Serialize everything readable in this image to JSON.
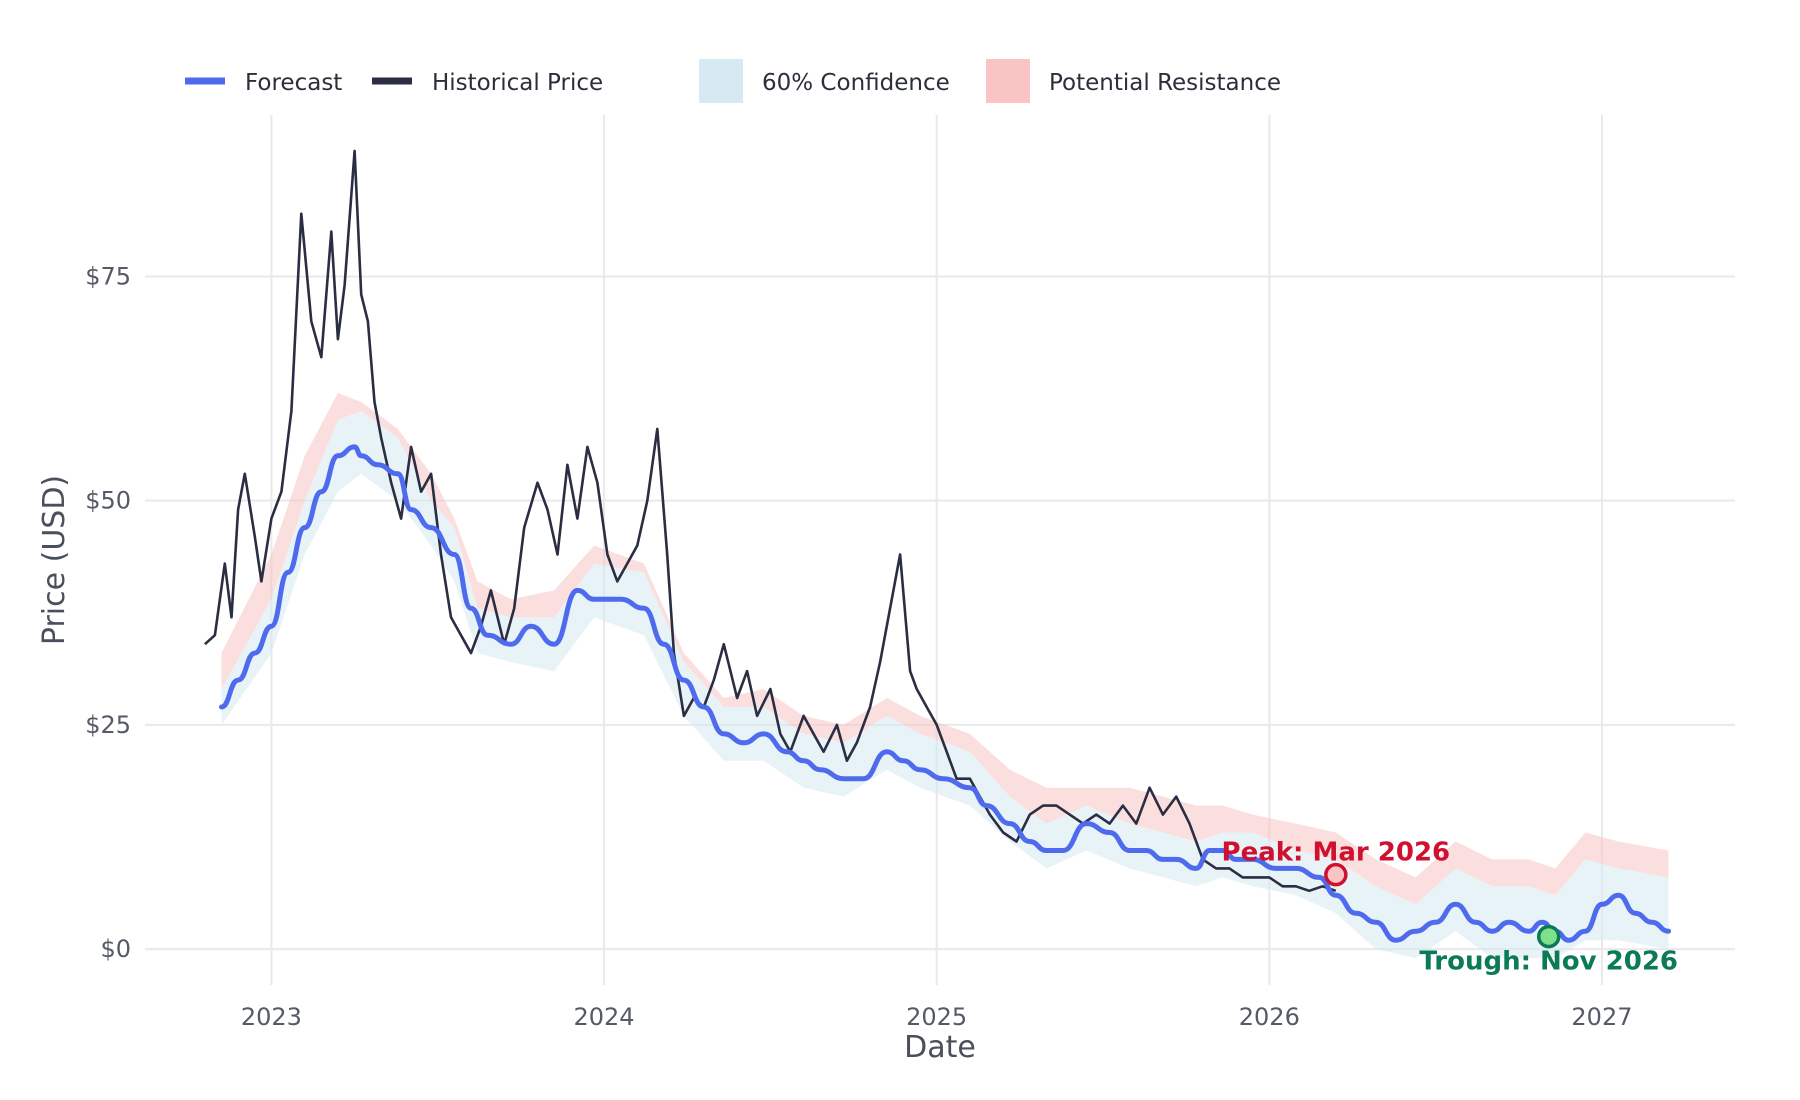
{
  "chart_data": {
    "type": "line",
    "title": "",
    "xlabel": "Date",
    "ylabel": "Price (USD)",
    "xlim": [
      2022.62,
      2027.4
    ],
    "ylim": [
      -4,
      93
    ],
    "x_ticks": [
      2023,
      2024,
      2025,
      2026,
      2027
    ],
    "x_tick_labels": [
      "2023",
      "2024",
      "2025",
      "2026",
      "2027"
    ],
    "y_ticks": [
      0,
      25,
      50,
      75
    ],
    "y_tick_labels": [
      "$0",
      "$25",
      "$50",
      "$75"
    ],
    "grid": true,
    "legend_position": "top-left",
    "legend": [
      {
        "label": "Forecast",
        "kind": "line",
        "color": "#4f6bed"
      },
      {
        "label": "Historical Price",
        "kind": "line",
        "color": "#2b2d42"
      },
      {
        "label": "60% Confidence",
        "kind": "patch",
        "color": "#d6eaf2"
      },
      {
        "label": "Potential Resistance",
        "kind": "patch",
        "color": "#f8c4c4"
      }
    ],
    "series": [
      {
        "name": "Historical Price",
        "color": "#2b2d42",
        "x": [
          2022.8,
          2022.83,
          2022.86,
          2022.88,
          2022.9,
          2022.92,
          2022.95,
          2022.97,
          2023.0,
          2023.03,
          2023.06,
          2023.09,
          2023.12,
          2023.15,
          2023.18,
          2023.2,
          2023.22,
          2023.25,
          2023.27,
          2023.29,
          2023.31,
          2023.33,
          2023.36,
          2023.39,
          2023.42,
          2023.45,
          2023.48,
          2023.51,
          2023.54,
          2023.57,
          2023.6,
          2023.63,
          2023.66,
          2023.7,
          2023.73,
          2023.76,
          2023.8,
          2023.83,
          2023.86,
          2023.89,
          2023.92,
          2023.95,
          2023.98,
          2024.01,
          2024.04,
          2024.07,
          2024.1,
          2024.13,
          2024.16,
          2024.19,
          2024.21,
          2024.24,
          2024.27,
          2024.3,
          2024.33,
          2024.36,
          2024.4,
          2024.43,
          2024.46,
          2024.5,
          2024.53,
          2024.56,
          2024.6,
          2024.63,
          2024.66,
          2024.7,
          2024.73,
          2024.76,
          2024.8,
          2024.83,
          2024.86,
          2024.89,
          2024.92,
          2024.94,
          2024.97,
          2025.0,
          2025.03,
          2025.06,
          2025.1,
          2025.13,
          2025.16,
          2025.2,
          2025.24,
          2025.28,
          2025.32,
          2025.36,
          2025.4,
          2025.44,
          2025.48,
          2025.52,
          2025.56,
          2025.6,
          2025.64,
          2025.68,
          2025.72,
          2025.76,
          2025.8,
          2025.84,
          2025.88,
          2025.92,
          2025.96,
          2026.0,
          2026.04,
          2026.08,
          2026.12,
          2026.16,
          2026.2
        ],
        "y": [
          34,
          35,
          43,
          37,
          49,
          53,
          46,
          41,
          48,
          51,
          60,
          82,
          70,
          66,
          80,
          68,
          74,
          89,
          73,
          70,
          61,
          57,
          52,
          48,
          56,
          51,
          53,
          44,
          37,
          35,
          33,
          36,
          40,
          34,
          38,
          47,
          52,
          49,
          44,
          54,
          48,
          56,
          52,
          44,
          41,
          43,
          45,
          50,
          58,
          44,
          33,
          26,
          28,
          27,
          30,
          34,
          28,
          31,
          26,
          29,
          24,
          22,
          26,
          24,
          22,
          25,
          21,
          23,
          27,
          32,
          38,
          44,
          31,
          29,
          27,
          25,
          22,
          19,
          19,
          17,
          15,
          13,
          12,
          15,
          16,
          16,
          15,
          14,
          15,
          14,
          16,
          14,
          18,
          15,
          17,
          14,
          10,
          9,
          9,
          8,
          8,
          8,
          7,
          7,
          6.5,
          7,
          6.5
        ]
      },
      {
        "name": "Forecast",
        "color": "#4f6bed",
        "x": [
          2022.85,
          2022.9,
          2022.95,
          2023.0,
          2023.05,
          2023.1,
          2023.15,
          2023.2,
          2023.25,
          2023.27,
          2023.32,
          2023.38,
          2023.42,
          2023.48,
          2023.55,
          2023.6,
          2023.65,
          2023.72,
          2023.78,
          2023.85,
          2023.92,
          2023.97,
          2024.05,
          2024.12,
          2024.18,
          2024.24,
          2024.3,
          2024.36,
          2024.42,
          2024.48,
          2024.55,
          2024.6,
          2024.65,
          2024.72,
          2024.78,
          2024.85,
          2024.9,
          2024.95,
          2025.02,
          2025.1,
          2025.15,
          2025.22,
          2025.28,
          2025.33,
          2025.38,
          2025.45,
          2025.52,
          2025.58,
          2025.63,
          2025.68,
          2025.72,
          2025.78,
          2025.82,
          2025.86,
          2025.9,
          2025.95,
          2026.02,
          2026.08,
          2026.15,
          2026.2,
          2026.26,
          2026.32,
          2026.38,
          2026.44,
          2026.5,
          2026.56,
          2026.62,
          2026.67,
          2026.72,
          2026.78,
          2026.82,
          2026.86,
          2026.9,
          2026.95,
          2027.0,
          2027.05,
          2027.1,
          2027.15,
          2027.2
        ],
        "y": [
          27,
          30,
          33,
          36,
          42,
          47,
          51,
          55,
          56,
          55,
          54,
          53,
          49,
          47,
          44,
          38,
          35,
          34,
          36,
          34,
          40,
          39,
          39,
          38,
          34,
          30,
          27,
          24,
          23,
          24,
          22,
          21,
          20,
          19,
          19,
          22,
          21,
          20,
          19,
          18,
          16,
          14,
          12,
          11,
          11,
          14,
          13,
          11,
          11,
          10,
          10,
          9,
          11,
          11,
          10,
          10,
          9,
          9,
          8,
          6,
          4,
          3,
          1,
          2,
          3,
          5,
          3,
          2,
          3,
          2,
          3,
          2,
          1,
          2,
          5,
          6,
          4,
          3,
          2
        ]
      }
    ],
    "bands": [
      {
        "name": "60% Confidence",
        "color": "#d6eaf2",
        "x": [
          2022.85,
          2023.0,
          2023.1,
          2023.2,
          2023.27,
          2023.38,
          2023.48,
          2023.55,
          2023.62,
          2023.72,
          2023.85,
          2023.97,
          2024.12,
          2024.24,
          2024.36,
          2024.48,
          2024.6,
          2024.72,
          2024.85,
          2024.95,
          2025.1,
          2025.22,
          2025.33,
          2025.45,
          2025.58,
          2025.68,
          2025.78,
          2025.86,
          2025.95,
          2026.08,
          2026.2,
          2026.32,
          2026.44,
          2026.56,
          2026.67,
          2026.78,
          2026.86,
          2026.95,
          2027.05,
          2027.2
        ],
        "lower": [
          25,
          33,
          44,
          51,
          53,
          50,
          45,
          41,
          33,
          32,
          31,
          37,
          35,
          26,
          21,
          21,
          18,
          17,
          20,
          18,
          16,
          12,
          9,
          11,
          9,
          8,
          7,
          8,
          7,
          6,
          4,
          0,
          -1,
          2,
          -1,
          -1,
          -1,
          1,
          1,
          0
        ],
        "upper": [
          29,
          39,
          50,
          59,
          60,
          57,
          50,
          47,
          38,
          37,
          37,
          43,
          42,
          32,
          27,
          27,
          24,
          23,
          26,
          24,
          22,
          17,
          14,
          16,
          14,
          13,
          12,
          13,
          13,
          11,
          10,
          7,
          5,
          9,
          7,
          7,
          6,
          10,
          9,
          8
        ]
      },
      {
        "name": "Potential Resistance",
        "color": "#f8c4c4",
        "x": [
          2022.85,
          2023.0,
          2023.1,
          2023.2,
          2023.27,
          2023.38,
          2023.48,
          2023.55,
          2023.62,
          2023.72,
          2023.85,
          2023.97,
          2024.12,
          2024.24,
          2024.36,
          2024.48,
          2024.6,
          2024.72,
          2024.85,
          2024.95,
          2025.1,
          2025.22,
          2025.33,
          2025.45,
          2025.58,
          2025.68,
          2025.78,
          2025.86,
          2025.95,
          2026.08,
          2026.2,
          2026.32,
          2026.44,
          2026.56,
          2026.67,
          2026.78,
          2026.86,
          2026.95,
          2027.05,
          2027.2
        ],
        "lower": [
          29,
          39,
          50,
          59,
          60,
          57,
          50,
          47,
          38,
          37,
          37,
          43,
          42,
          32,
          27,
          27,
          24,
          23,
          26,
          24,
          22,
          17,
          14,
          16,
          14,
          13,
          12,
          13,
          13,
          11,
          10,
          7,
          5,
          9,
          7,
          7,
          6,
          10,
          9,
          8
        ],
        "upper": [
          33,
          44,
          55,
          62,
          61,
          58,
          53,
          48,
          41,
          39,
          40,
          45,
          43,
          33,
          28,
          29,
          26,
          25,
          28,
          26,
          24,
          20,
          18,
          18,
          18,
          17,
          16,
          16,
          15,
          14,
          13,
          10,
          8,
          12,
          10,
          10,
          9,
          13,
          12,
          11
        ]
      }
    ],
    "annotations": [
      {
        "text": "Peak: Mar 2026",
        "x": 2026.2,
        "y": 8.3,
        "color": "#d0102e",
        "marker_fill": "#f8c4c4",
        "placement": "above"
      },
      {
        "text": "Trough: Nov 2026",
        "x": 2026.84,
        "y": 1.4,
        "color": "#0b7a57",
        "marker_fill": "#7ee08a",
        "placement": "below"
      }
    ]
  }
}
